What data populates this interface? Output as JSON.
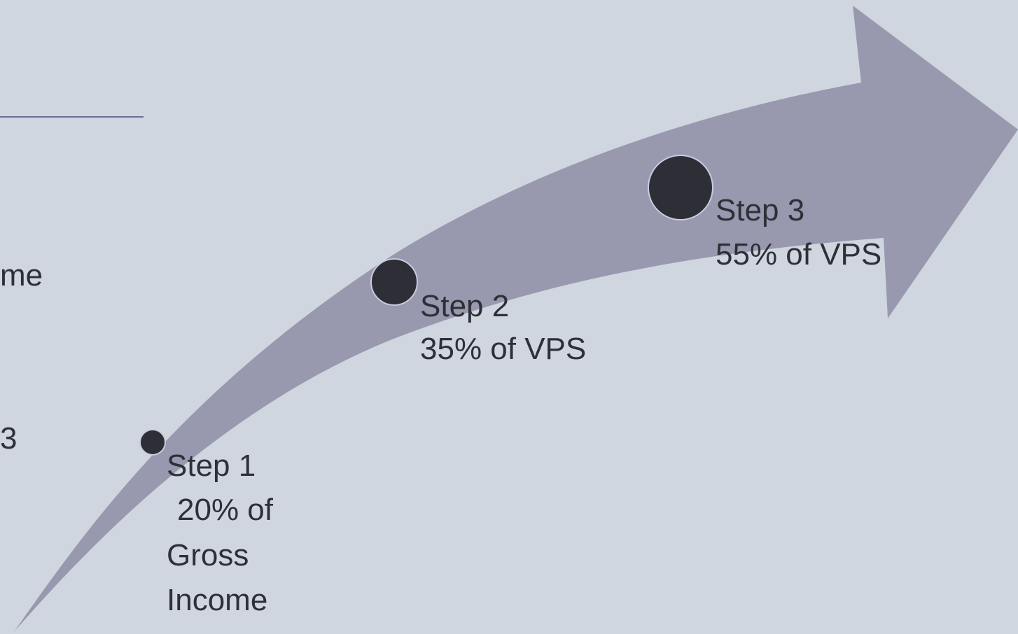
{
  "left_fragments": [
    "me",
    "3"
  ],
  "steps": [
    {
      "title": "Step 1",
      "detail": [
        "20% of",
        "Gross",
        "Income"
      ]
    },
    {
      "title": "Step 2",
      "detail": [
        "35% of VPS"
      ]
    },
    {
      "title": "Step 3",
      "detail": [
        "55% of VPS"
      ]
    }
  ]
}
